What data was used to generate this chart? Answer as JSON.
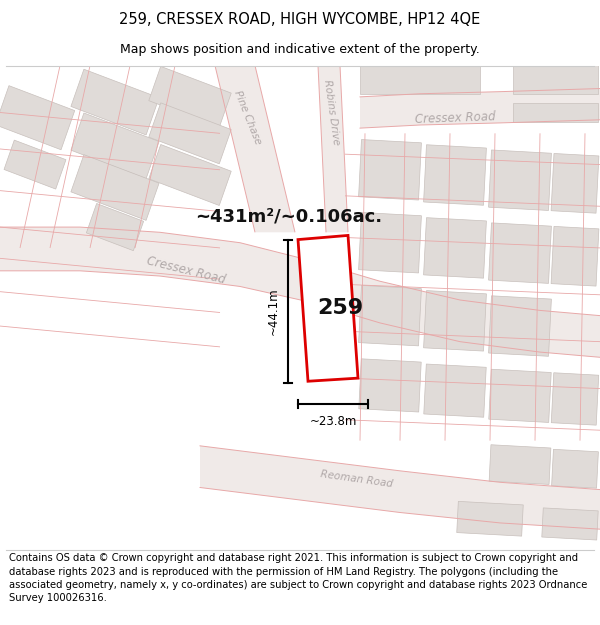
{
  "title_line1": "259, CRESSEX ROAD, HIGH WYCOMBE, HP12 4QE",
  "title_line2": "Map shows position and indicative extent of the property.",
  "footer_text": "Contains OS data © Crown copyright and database right 2021. This information is subject to Crown copyright and database rights 2023 and is reproduced with the permission of HM Land Registry. The polygons (including the associated geometry, namely x, y co-ordinates) are subject to Crown copyright and database rights 2023 Ordnance Survey 100026316.",
  "area_label": "~431m²/~0.106ac.",
  "width_label": "~23.8m",
  "height_label": "~44.1m",
  "plot_number": "259",
  "map_bg": "#f7f4f2",
  "building_fill": "#e0dbd8",
  "building_edge": "#c8c0bc",
  "road_line": "#e8a8a8",
  "plot_outline_color": "#dd0000",
  "plot_fill": "#ffffff",
  "dim_line_color": "#000000",
  "street_label_color": "#b0a8a8",
  "title_fontsize": 10.5,
  "subtitle_fontsize": 9,
  "footer_fontsize": 7.2
}
